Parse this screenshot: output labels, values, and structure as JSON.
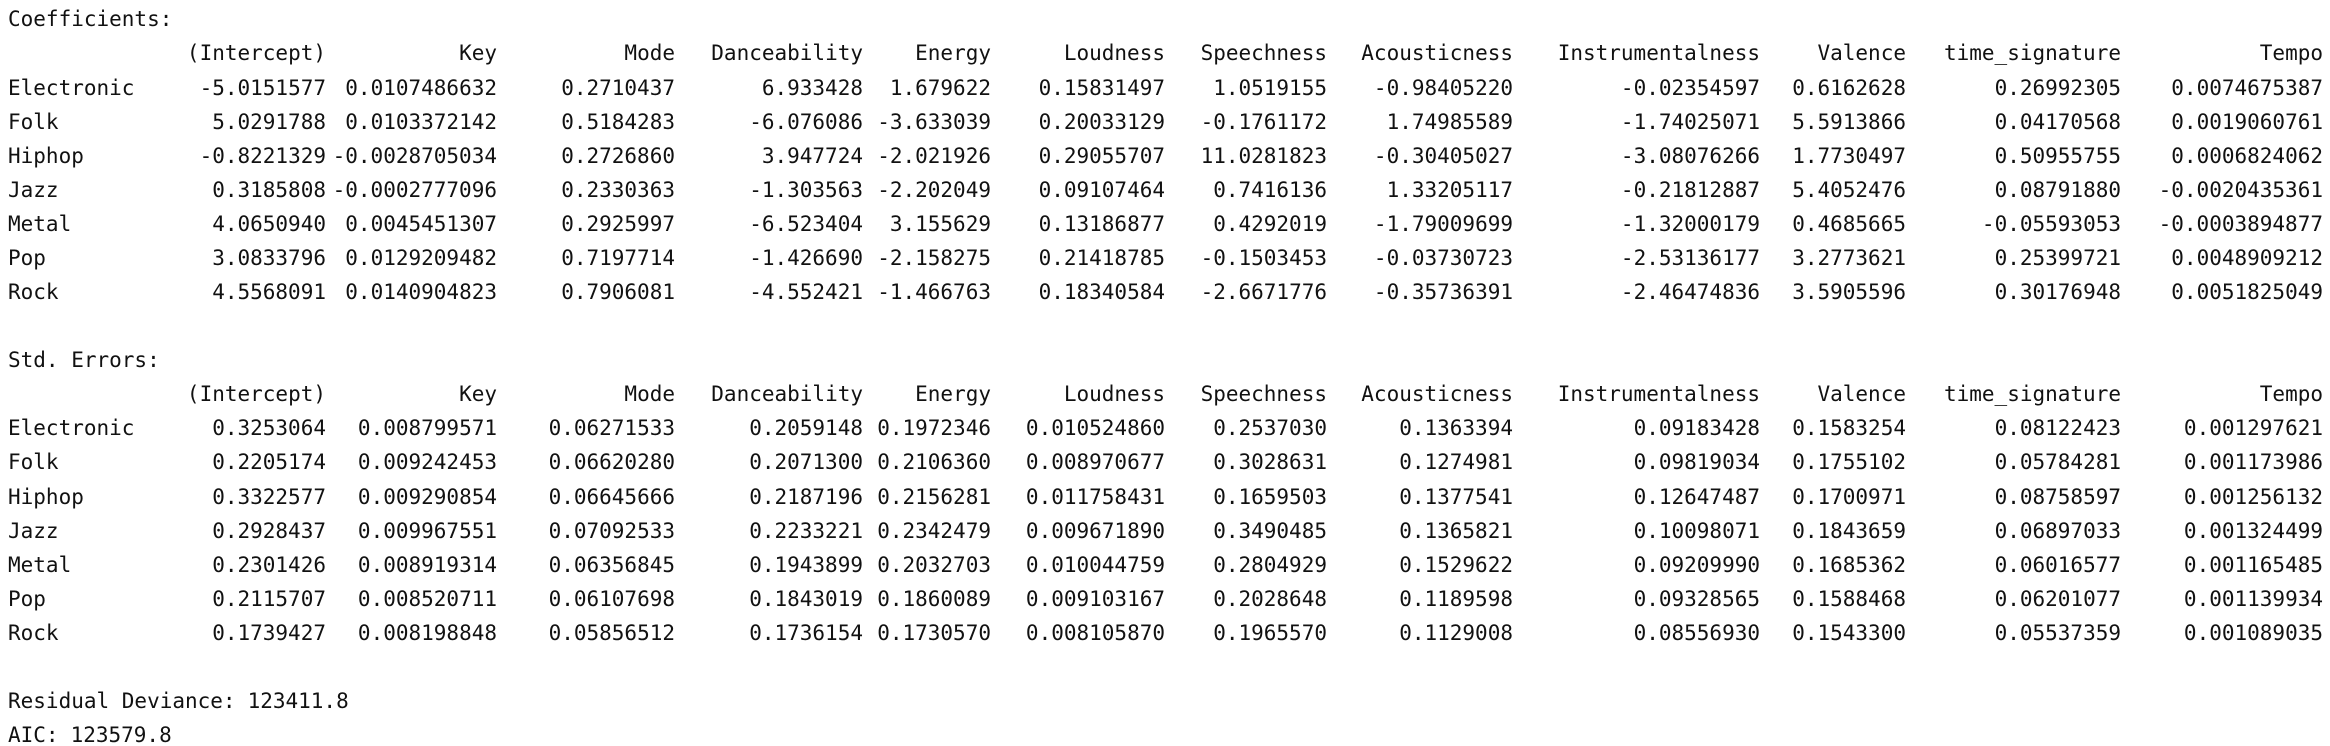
{
  "coefficients": {
    "title": "Coefficients:",
    "columns": [
      "(Intercept)",
      "Key",
      "Mode",
      "Danceability",
      "Energy",
      "Loudness",
      "Speechness",
      "Acousticness",
      "Instrumentalness",
      "Valence",
      "time_signature",
      "Tempo"
    ],
    "rows": [
      {
        "label": "Electronic",
        "values": [
          "-5.0151577",
          "0.0107486632",
          "0.2710437",
          "6.933428",
          "1.679622",
          "0.15831497",
          "1.0519155",
          "-0.98405220",
          "-0.02354597",
          "0.6162628",
          "0.26992305",
          "0.0074675387"
        ]
      },
      {
        "label": "Folk",
        "values": [
          "5.0291788",
          "0.0103372142",
          "0.5184283",
          "-6.076086",
          "-3.633039",
          "0.20033129",
          "-0.1761172",
          "1.74985589",
          "-1.74025071",
          "5.5913866",
          "0.04170568",
          "0.0019060761"
        ]
      },
      {
        "label": "Hiphop",
        "values": [
          "-0.8221329",
          "-0.0028705034",
          "0.2726860",
          "3.947724",
          "-2.021926",
          "0.29055707",
          "11.0281823",
          "-0.30405027",
          "-3.08076266",
          "1.7730497",
          "0.50955755",
          "0.0006824062"
        ]
      },
      {
        "label": "Jazz",
        "values": [
          "0.3185808",
          "-0.0002777096",
          "0.2330363",
          "-1.303563",
          "-2.202049",
          "0.09107464",
          "0.7416136",
          "1.33205117",
          "-0.21812887",
          "5.4052476",
          "0.08791880",
          "-0.0020435361"
        ]
      },
      {
        "label": "Metal",
        "values": [
          "4.0650940",
          "0.0045451307",
          "0.2925997",
          "-6.523404",
          "3.155629",
          "0.13186877",
          "0.4292019",
          "-1.79009699",
          "-1.32000179",
          "0.4685665",
          "-0.05593053",
          "-0.0003894877"
        ]
      },
      {
        "label": "Pop",
        "values": [
          "3.0833796",
          "0.0129209482",
          "0.7197714",
          "-1.426690",
          "-2.158275",
          "0.21418785",
          "-0.1503453",
          "-0.03730723",
          "-2.53136177",
          "3.2773621",
          "0.25399721",
          "0.0048909212"
        ]
      },
      {
        "label": "Rock",
        "values": [
          "4.5568091",
          "0.0140904823",
          "0.7906081",
          "-4.552421",
          "-1.466763",
          "0.18340584",
          "-2.6671776",
          "-0.35736391",
          "-2.46474836",
          "3.5905596",
          "0.30176948",
          "0.0051825049"
        ]
      }
    ]
  },
  "std_errors": {
    "title": "Std. Errors:",
    "columns": [
      "(Intercept)",
      "Key",
      "Mode",
      "Danceability",
      "Energy",
      "Loudness",
      "Speechness",
      "Acousticness",
      "Instrumentalness",
      "Valence",
      "time_signature",
      "Tempo"
    ],
    "rows": [
      {
        "label": "Electronic",
        "values": [
          "0.3253064",
          "0.008799571",
          "0.06271533",
          "0.2059148",
          "0.1972346",
          "0.010524860",
          "0.2537030",
          "0.1363394",
          "0.09183428",
          "0.1583254",
          "0.08122423",
          "0.001297621"
        ]
      },
      {
        "label": "Folk",
        "values": [
          "0.2205174",
          "0.009242453",
          "0.06620280",
          "0.2071300",
          "0.2106360",
          "0.008970677",
          "0.3028631",
          "0.1274981",
          "0.09819034",
          "0.1755102",
          "0.05784281",
          "0.001173986"
        ]
      },
      {
        "label": "Hiphop",
        "values": [
          "0.3322577",
          "0.009290854",
          "0.06645666",
          "0.2187196",
          "0.2156281",
          "0.011758431",
          "0.1659503",
          "0.1377541",
          "0.12647487",
          "0.1700971",
          "0.08758597",
          "0.001256132"
        ]
      },
      {
        "label": "Jazz",
        "values": [
          "0.2928437",
          "0.009967551",
          "0.07092533",
          "0.2233221",
          "0.2342479",
          "0.009671890",
          "0.3490485",
          "0.1365821",
          "0.10098071",
          "0.1843659",
          "0.06897033",
          "0.001324499"
        ]
      },
      {
        "label": "Metal",
        "values": [
          "0.2301426",
          "0.008919314",
          "0.06356845",
          "0.1943899",
          "0.2032703",
          "0.010044759",
          "0.2804929",
          "0.1529622",
          "0.09209990",
          "0.1685362",
          "0.06016577",
          "0.001165485"
        ]
      },
      {
        "label": "Pop",
        "values": [
          "0.2115707",
          "0.008520711",
          "0.06107698",
          "0.1843019",
          "0.1860089",
          "0.009103167",
          "0.2028648",
          "0.1189598",
          "0.09328565",
          "0.1588468",
          "0.06201077",
          "0.001139934"
        ]
      },
      {
        "label": "Rock",
        "values": [
          "0.1739427",
          "0.008198848",
          "0.05856512",
          "0.1736154",
          "0.1730570",
          "0.008105870",
          "0.1965570",
          "0.1129008",
          "0.08556930",
          "0.1543300",
          "0.05537359",
          "0.001089035"
        ]
      }
    ]
  },
  "residual_deviance": {
    "label": "Residual Deviance:",
    "value": "123411.8"
  },
  "aic": {
    "label": "AIC:",
    "value": "123579.8"
  }
}
